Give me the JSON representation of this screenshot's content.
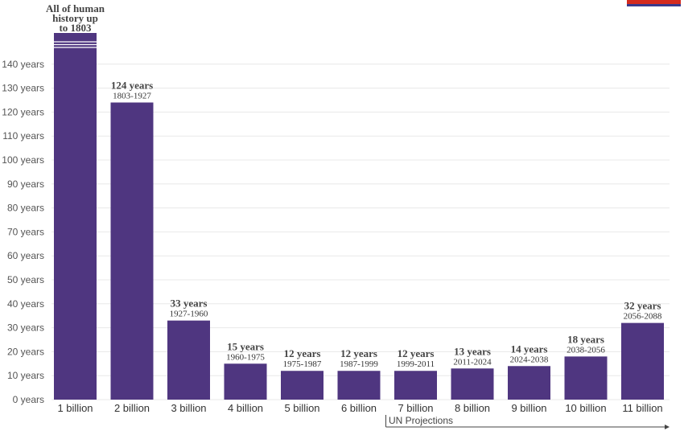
{
  "chart_data": {
    "type": "bar",
    "bar_color": "#4f3680",
    "ylim": [
      0,
      150
    ],
    "y_ticks": [
      "0 years",
      "10 years",
      "20 years",
      "30 years",
      "40 years",
      "50 years",
      "60 years",
      "70 years",
      "80 years",
      "90 years",
      "100 years",
      "110 years",
      "120 years",
      "130 years",
      "140 years"
    ],
    "y_tick_values": [
      0,
      10,
      20,
      30,
      40,
      50,
      60,
      70,
      80,
      90,
      100,
      110,
      120,
      130,
      140
    ],
    "categories": [
      "1 billion",
      "2 billion",
      "3 billion",
      "4 billion",
      "5 billion",
      "6 billion",
      "7 billion",
      "8 billion",
      "9 billion",
      "10 billion",
      "11 billion"
    ],
    "values": [
      null,
      124,
      33,
      15,
      12,
      12,
      12,
      13,
      14,
      18,
      32
    ],
    "labels": [
      "All of human history up to 1803",
      "124 years",
      "33 years",
      "15 years",
      "12 years",
      "12 years",
      "12 years",
      "13 years",
      "14 years",
      "18 years",
      "32 years"
    ],
    "sublabels": [
      "",
      "1803-1927",
      "1927-1960",
      "1960-1975",
      "1975-1987",
      "1987-1999",
      "1999-2011",
      "2011-2024",
      "2024-2038",
      "2038-2056",
      "2056-2088"
    ],
    "annotation": "UN Projections",
    "grid": true,
    "legend": "none"
  }
}
